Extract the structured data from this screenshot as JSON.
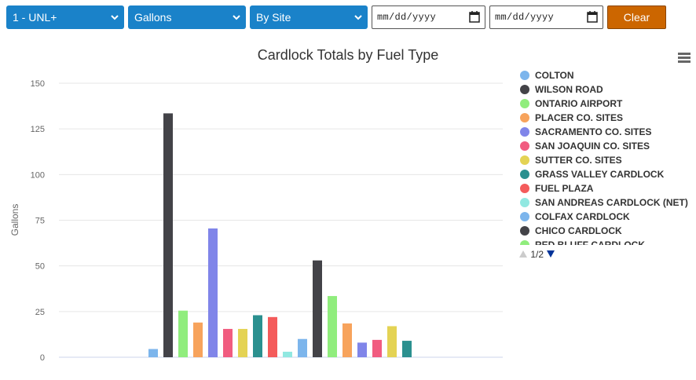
{
  "toolbar": {
    "fuel_select": "1 - UNL+",
    "unit_select": "Gallons",
    "group_select": "By Site",
    "start_date_placeholder": "mm/dd/yyyy",
    "end_date_placeholder": "mm/dd/yyyy",
    "clear_label": "Clear"
  },
  "icons": {
    "menu": "hamburger-menu-icon",
    "calendar": "calendar-icon",
    "caret": "chevron-down-icon"
  },
  "colors": {
    "select_bg": "#1a82c9",
    "clear_bg": "#cc6600"
  },
  "legend_pager": {
    "text": "1/2"
  },
  "chart_data": {
    "type": "bar",
    "title": "Cardlock Totals by Fuel Type",
    "ylabel": "Gallons",
    "xlabel": "",
    "ylim": [
      0,
      150
    ],
    "yticks": [
      0,
      25,
      50,
      75,
      100,
      125,
      150
    ],
    "grid": true,
    "legend_position": "right",
    "series": [
      {
        "name": "COLTON",
        "color": "#7cb5ec",
        "values": [
          0,
          0,
          10
        ]
      },
      {
        "name": "WILSON ROAD",
        "color": "#434348",
        "values": [
          0,
          133.5,
          53
        ]
      },
      {
        "name": "ONTARIO AIRPORT",
        "color": "#90ed7d",
        "values": [
          0,
          25.5,
          33.5
        ]
      },
      {
        "name": "PLACER CO. SITES",
        "color": "#f7a35c",
        "values": [
          0,
          19,
          18.5
        ]
      },
      {
        "name": "SACRAMENTO CO. SITES",
        "color": "#8085e9",
        "values": [
          0,
          70.5,
          8
        ]
      },
      {
        "name": "SAN JOAQUIN CO. SITES",
        "color": "#f15c80",
        "values": [
          0,
          15.5,
          9.5
        ]
      },
      {
        "name": "SUTTER CO. SITES",
        "color": "#e4d354",
        "values": [
          0,
          15.5,
          17
        ]
      },
      {
        "name": "GRASS VALLEY CARDLOCK",
        "color": "#2b908f",
        "values": [
          0,
          23,
          9
        ]
      },
      {
        "name": "FUEL PLAZA",
        "color": "#f45b5b",
        "values": [
          0,
          22,
          0
        ]
      },
      {
        "name": "SAN ANDREAS CARDLOCK (NET)",
        "color": "#91e8e1",
        "values": [
          0,
          3,
          0
        ]
      },
      {
        "name": "COLFAX CARDLOCK",
        "color": "#7cb5ec",
        "values": [
          4.5,
          0,
          0
        ]
      },
      {
        "name": "CHICO CARDLOCK",
        "color": "#434348",
        "values": [
          0,
          0,
          0
        ]
      },
      {
        "name": "RED BLUFF CARDLOCK",
        "color": "#90ed7d",
        "values": [
          0,
          0,
          0
        ]
      }
    ],
    "categories": [
      "",
      "",
      ""
    ]
  }
}
